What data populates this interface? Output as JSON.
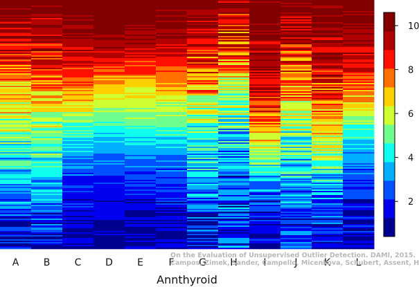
{
  "chart_data": {
    "type": "heatmap",
    "xlabel": "Annthyroid",
    "categories": [
      "A",
      "B",
      "C",
      "D",
      "E",
      "F",
      "G",
      "H",
      "I",
      "J",
      "K",
      "L"
    ],
    "color_scale": {
      "range": [
        0.4,
        10.6
      ],
      "ticks": [
        2,
        4,
        6,
        8,
        10
      ],
      "colors": [
        "#00008F",
        "#0000EF",
        "#0050FF",
        "#00AFFF",
        "#10FFEF",
        "#70FF8F",
        "#CFFF30",
        "#FFD000",
        "#FF7000",
        "#FF1000",
        "#B00000",
        "#800000"
      ]
    },
    "column_profiles": [
      {
        "column": "A",
        "profile": [
          10.4,
          9.6,
          8.9,
          8.1,
          7.0,
          6.0,
          5.0,
          4.2,
          3.5,
          2.6,
          1.8,
          1.3
        ],
        "noise": 2.6
      },
      {
        "column": "B",
        "profile": [
          10.4,
          9.7,
          9.0,
          8.2,
          7.1,
          6.1,
          5.1,
          4.3,
          3.6,
          2.7,
          1.9,
          1.4
        ],
        "noise": 2.4
      },
      {
        "column": "C",
        "profile": [
          10.5,
          10.1,
          9.5,
          8.5,
          7.3,
          5.8,
          4.3,
          3.0,
          2.2,
          1.7,
          1.3,
          1.0
        ],
        "noise": 1.3
      },
      {
        "column": "D",
        "profile": [
          10.5,
          10.3,
          9.6,
          8.2,
          6.5,
          5.2,
          4.0,
          2.8,
          2.0,
          1.5,
          1.2,
          0.9
        ],
        "noise": 0.9
      },
      {
        "column": "E",
        "profile": [
          10.5,
          10.2,
          9.4,
          8.1,
          6.6,
          5.5,
          4.2,
          2.9,
          2.1,
          1.6,
          1.3,
          1.0
        ],
        "noise": 1.0
      },
      {
        "column": "F",
        "profile": [
          10.5,
          10.0,
          9.2,
          8.0,
          6.8,
          5.4,
          4.1,
          3.0,
          2.2,
          1.7,
          1.3,
          1.0
        ],
        "noise": 1.3
      },
      {
        "column": "G",
        "profile": [
          10.4,
          9.6,
          8.8,
          7.9,
          6.9,
          5.7,
          4.6,
          3.8,
          3.2,
          2.6,
          2.0,
          1.6
        ],
        "noise": 2.8
      },
      {
        "column": "H",
        "profile": [
          10.2,
          9.2,
          8.0,
          6.8,
          5.9,
          4.9,
          4.0,
          3.2,
          2.5,
          2.2,
          2.1,
          2.6
        ],
        "noise": 3.4
      },
      {
        "column": "I",
        "profile": [
          10.5,
          10.1,
          9.7,
          9.3,
          8.9,
          8.0,
          6.9,
          5.2,
          3.4,
          2.1,
          1.4,
          1.0
        ],
        "noise": 2.2
      },
      {
        "column": "J",
        "profile": [
          10.4,
          9.7,
          8.9,
          8.0,
          7.0,
          5.9,
          4.9,
          4.2,
          3.6,
          3.0,
          2.4,
          2.0
        ],
        "noise": 3.0
      },
      {
        "column": "K",
        "profile": [
          10.5,
          10.0,
          9.4,
          8.9,
          8.3,
          7.5,
          6.5,
          5.2,
          3.8,
          2.6,
          1.7,
          1.2
        ],
        "noise": 2.8
      },
      {
        "column": "L",
        "profile": [
          10.5,
          10.1,
          9.5,
          8.6,
          7.4,
          5.9,
          4.3,
          3.0,
          2.2,
          1.7,
          1.4,
          1.2
        ],
        "noise": 1.7
      }
    ]
  },
  "watermark": {
    "line1": "On the Evaluation of Unsupervised Outlier Detection. DAMI, 2015.",
    "line2": "Campos, Zimek, Sander, Campello, Micenkova, Schubert, Assent, Houle"
  }
}
